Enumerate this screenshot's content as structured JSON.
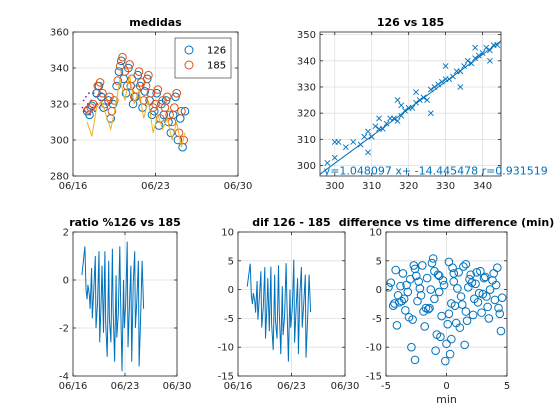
{
  "figure": {
    "background": "#ffffff",
    "axis_color": "#262626",
    "grid_color": "#dfdfdf"
  },
  "chart_data": [
    {
      "id": "medidas",
      "type": "scatter",
      "title": "medidas",
      "xlabel": "",
      "ylabel": "",
      "grid": true,
      "legend_position": "top-right",
      "xlim": [
        "06/16",
        "06/30"
      ],
      "ylim": [
        280,
        360
      ],
      "x_ticks": [
        {
          "value": 0,
          "label": "06/16"
        },
        {
          "value": 7,
          "label": "06/23"
        },
        {
          "value": 14,
          "label": "06/30"
        }
      ],
      "y_ticks": [
        280,
        300,
        320,
        340,
        360
      ],
      "series": [
        {
          "name": "126",
          "marker": "circle",
          "color": "#0072bd",
          "x": [
            1.2,
            1.4,
            1.6,
            2.0,
            2.2,
            2.4,
            2.6,
            3.0,
            3.2,
            3.4,
            3.7,
            3.9,
            4.1,
            4.3,
            4.5,
            4.7,
            4.9,
            5.1,
            5.3,
            5.5,
            5.7,
            5.9,
            6.1,
            6.3,
            6.5,
            6.7,
            6.9,
            7.1,
            7.3,
            7.5,
            7.7,
            7.9,
            8.1,
            8.3,
            8.5,
            8.7,
            8.9,
            9.1,
            9.3,
            9.5
          ],
          "y": [
            316,
            314,
            319,
            326,
            330,
            324,
            318,
            322,
            312,
            320,
            330,
            338,
            344,
            334,
            326,
            340,
            330,
            320,
            324,
            336,
            330,
            318,
            327,
            334,
            322,
            314,
            316,
            326,
            308,
            320,
            314,
            322,
            310,
            304,
            314,
            324,
            300,
            312,
            296,
            316
          ]
        },
        {
          "name": "185",
          "marker": "circle",
          "color": "#d95319",
          "x": [
            1.3,
            1.5,
            1.7,
            2.1,
            2.3,
            2.5,
            2.7,
            3.1,
            3.3,
            3.5,
            3.8,
            4.0,
            4.2,
            4.4,
            4.6,
            4.8,
            5.0,
            5.2,
            5.4,
            5.6,
            5.8,
            6.0,
            6.2,
            6.4,
            6.6,
            6.8,
            7.0,
            7.2,
            7.4,
            7.6,
            7.8,
            8.0,
            8.2,
            8.4,
            8.6,
            8.8,
            9.0,
            9.2,
            9.4
          ],
          "y": [
            317,
            318,
            320,
            330,
            332,
            326,
            320,
            324,
            316,
            322,
            333,
            341,
            346,
            338,
            330,
            342,
            334,
            324,
            328,
            338,
            332,
            322,
            330,
            336,
            326,
            318,
            320,
            328,
            312,
            322,
            318,
            324,
            314,
            310,
            318,
            326,
            304,
            316,
            300
          ]
        },
        {
          "name": "",
          "marker": "line",
          "color": "#edb120",
          "x": [
            1.2,
            1.6,
            2.0,
            2.4,
            2.8,
            3.2,
            3.6,
            4.0,
            4.4,
            4.8,
            5.2,
            5.6,
            6.0,
            6.4,
            6.8,
            7.2,
            7.6,
            8.0,
            8.4,
            8.8,
            9.2,
            9.5
          ],
          "y": [
            310,
            302,
            318,
            322,
            314,
            306,
            318,
            334,
            322,
            336,
            320,
            328,
            312,
            322,
            304,
            314,
            306,
            312,
            300,
            310,
            296,
            304
          ]
        },
        {
          "name": "",
          "marker": "dot",
          "color": "#7e2f8e",
          "x": [
            0.8,
            0.9,
            1.0,
            1.1,
            1.25,
            1.35,
            1.45,
            1.55,
            1.65,
            1.75,
            1.85,
            1.95,
            2.05,
            2.15,
            2.25,
            2.35,
            2.45
          ],
          "y": [
            318,
            322,
            316,
            324,
            320,
            326,
            314,
            322,
            318,
            326,
            316,
            324,
            320,
            328,
            318,
            322,
            326
          ]
        }
      ]
    },
    {
      "id": "scatter-126-185",
      "type": "scatter",
      "title": "126 vs 185",
      "xlabel": "",
      "ylabel": "",
      "grid": true,
      "xlim": [
        296,
        345
      ],
      "ylim": [
        296,
        351
      ],
      "x_ticks": [
        300,
        310,
        320,
        330,
        340
      ],
      "y_ticks": [
        300,
        310,
        320,
        330,
        340,
        350
      ],
      "series": [
        {
          "name": "",
          "marker": "x",
          "color": "#0072bd",
          "x": [
            298,
            300,
            301,
            303,
            305,
            307,
            308,
            309,
            310,
            311,
            312,
            313,
            314,
            315,
            316,
            317,
            318,
            319,
            320,
            321,
            322,
            323,
            324,
            325,
            326,
            327,
            328,
            329,
            330,
            331,
            332,
            333,
            334,
            335,
            336,
            337,
            338,
            339,
            340,
            341,
            342,
            343,
            344,
            317,
            318,
            309,
            312,
            322,
            326,
            330,
            334,
            338,
            342,
            300
          ],
          "y": [
            301,
            303,
            309,
            307,
            309,
            308,
            311,
            313,
            311,
            315,
            314,
            314,
            316,
            318,
            318,
            317,
            319,
            321,
            322,
            322,
            324,
            325,
            326,
            325,
            329,
            330,
            331,
            332,
            333,
            333,
            334,
            336,
            336,
            338,
            340,
            339,
            341,
            342,
            343,
            345,
            344,
            346,
            346,
            325,
            323,
            305,
            318,
            328,
            320,
            338,
            330,
            345,
            340,
            309
          ]
        }
      ],
      "fit_line": {
        "x": [
          296,
          345
        ],
        "y": [
          296.7,
          347.6
        ],
        "color": "#0072bd"
      },
      "annotation": {
        "text": "y=1.048097 x+ -14.445478 r=0.931519",
        "color": "#0072bd",
        "x": 297,
        "y": 296.5
      }
    },
    {
      "id": "ratio",
      "type": "line",
      "title": "ratio %126 vs 185",
      "xlabel": "",
      "ylabel": "",
      "grid": true,
      "xlim": [
        "06/16",
        "06/30"
      ],
      "ylim": [
        -4,
        2
      ],
      "x_ticks": [
        {
          "value": 0,
          "label": "06/16"
        },
        {
          "value": 7,
          "label": "06/23"
        },
        {
          "value": 14,
          "label": "06/30"
        }
      ],
      "y_ticks": [
        -4,
        -2,
        0,
        2
      ],
      "series": [
        {
          "name": "",
          "color": "#0072bd",
          "x": [
            1.2,
            1.4,
            1.6,
            1.75,
            1.9,
            2.0,
            2.2,
            2.3,
            2.5,
            2.6,
            2.8,
            3.0,
            3.1,
            3.3,
            3.5,
            3.6,
            3.8,
            3.9,
            4.1,
            4.3,
            4.4,
            4.6,
            4.8,
            4.9,
            5.1,
            5.3,
            5.4,
            5.6,
            5.8,
            5.9,
            6.1,
            6.3,
            6.4,
            6.6,
            6.8,
            6.9,
            7.1,
            7.3,
            7.4,
            7.6,
            7.8,
            7.9,
            8.1,
            8.3,
            8.4,
            8.6,
            8.8,
            8.9,
            9.1,
            9.3,
            9.5
          ],
          "y": [
            0.2,
            0.8,
            1.4,
            -0.4,
            -0.8,
            -0.2,
            -0.6,
            -1.2,
            0.5,
            -1.6,
            -0.4,
            1.0,
            -2.0,
            -1.0,
            1.2,
            -2.6,
            -0.8,
            0.6,
            -2.2,
            1.2,
            -1.8,
            -3.2,
            0.8,
            -1.6,
            -2.6,
            1.3,
            -1.2,
            -3.4,
            0.2,
            -2.4,
            -1.4,
            1.4,
            -0.6,
            -3.8,
            0.0,
            -2.0,
            -1.0,
            1.6,
            -2.8,
            -1.0,
            0.6,
            -3.4,
            -0.2,
            1.2,
            -2.0,
            -0.8,
            0.8,
            -3.6,
            -1.6,
            0.8,
            -1.2
          ]
        }
      ]
    },
    {
      "id": "dif",
      "type": "line",
      "title": "dif 126 - 185",
      "xlabel": "",
      "ylabel": "",
      "grid": true,
      "xlim": [
        "06/16",
        "06/30"
      ],
      "ylim": [
        -15,
        10
      ],
      "x_ticks": [
        {
          "value": 0,
          "label": "06/16"
        },
        {
          "value": 7,
          "label": "06/23"
        },
        {
          "value": 14,
          "label": "06/30"
        }
      ],
      "y_ticks": [
        -15,
        -10,
        -5,
        0,
        5,
        10
      ],
      "series": [
        {
          "name": "",
          "color": "#0072bd",
          "x": [
            1.2,
            1.4,
            1.6,
            1.75,
            1.9,
            2.0,
            2.2,
            2.3,
            2.5,
            2.6,
            2.8,
            3.0,
            3.1,
            3.3,
            3.5,
            3.6,
            3.8,
            3.9,
            4.1,
            4.3,
            4.4,
            4.6,
            4.8,
            4.9,
            5.1,
            5.3,
            5.4,
            5.6,
            5.8,
            5.9,
            6.1,
            6.3,
            6.4,
            6.6,
            6.8,
            6.9,
            7.1,
            7.3,
            7.4,
            7.6,
            7.8,
            7.9,
            8.1,
            8.3,
            8.4,
            8.6,
            8.8,
            8.9,
            9.1,
            9.3,
            9.5
          ],
          "y": [
            0.5,
            2.5,
            4.5,
            -1.2,
            -2.5,
            -0.6,
            -2.0,
            -4.0,
            1.5,
            -5.2,
            -1.3,
            3.2,
            -6.6,
            -3.3,
            3.9,
            -8.5,
            -2.6,
            2.0,
            -7.2,
            4.0,
            -5.9,
            -10.5,
            2.6,
            -5.2,
            -8.5,
            4.2,
            -3.9,
            -11.2,
            0.6,
            -7.9,
            -4.6,
            4.6,
            -2.0,
            -12.5,
            0.0,
            -6.6,
            -3.3,
            5.2,
            -9.2,
            -3.3,
            2.0,
            -11.2,
            -0.6,
            3.9,
            -6.6,
            -2.6,
            2.6,
            -11.8,
            -5.2,
            2.6,
            -3.9
          ]
        }
      ]
    },
    {
      "id": "difference-vs-time",
      "type": "scatter",
      "title": "difference vs time difference (min)",
      "xlabel": "min",
      "ylabel": "",
      "grid": true,
      "xlim": [
        -5,
        5
      ],
      "ylim": [
        -15,
        10
      ],
      "x_ticks": [
        -5,
        0,
        5
      ],
      "y_ticks": [
        -15,
        -10,
        -5,
        0,
        5,
        10
      ],
      "series": [
        {
          "name": "",
          "marker": "circle",
          "color": "#0072bd",
          "x": [
            -4.6,
            -4.4,
            -4.2,
            -4.0,
            -3.8,
            -3.6,
            -3.4,
            -3.2,
            -3.0,
            -2.8,
            -2.6,
            -2.4,
            -2.2,
            -2.0,
            -1.8,
            -1.6,
            -1.4,
            -1.2,
            -1.0,
            -0.8,
            -0.6,
            -0.4,
            -0.2,
            0.0,
            0.2,
            0.4,
            0.6,
            0.8,
            1.0,
            1.2,
            1.4,
            1.6,
            1.8,
            2.0,
            2.2,
            2.4,
            2.6,
            2.8,
            3.0,
            3.2,
            3.4,
            3.6,
            3.8,
            4.0,
            4.2,
            4.4,
            4.6,
            -4.8,
            -3.9,
            -3.1,
            -2.3,
            -1.5,
            -0.7,
            0.1,
            0.9,
            1.7,
            2.5,
            3.3,
            4.1,
            -2.9,
            -2.5,
            -1.1,
            -0.5,
            0.5,
            1.3,
            2.1,
            3.5,
            -3.5,
            -1.9,
            -0.9,
            0.3,
            1.1,
            2.7,
            3.9,
            -4.1,
            -2.7,
            -1.3,
            0.7,
            1.9,
            2.9,
            4.3,
            -0.3,
            0.4,
            -0.1,
            0.2,
            -1.0,
            1.5,
            -2.1,
            -3.3,
            3.1,
            -4.3,
            4.5,
            -1.7,
            1.6,
            -0.6,
            0.6,
            2.3,
            -2.6,
            -3.7
          ],
          "y": [
            1.2,
            -2.8,
            3.4,
            -1.0,
            0.6,
            2.8,
            -3.6,
            -0.4,
            1.8,
            -5.2,
            3.6,
            -2.0,
            0.2,
            4.2,
            -6.4,
            2.0,
            -3.2,
            4.6,
            -1.6,
            -7.8,
            2.4,
            -4.6,
            0.8,
            -9.4,
            4.8,
            -2.4,
            1.4,
            -5.8,
            3.0,
            -1.2,
            4.0,
            -3.8,
            0.4,
            2.6,
            -4.4,
            1.0,
            -2.2,
            3.2,
            -0.8,
            2.2,
            -3.0,
            0.0,
            1.6,
            -1.8,
            3.8,
            -4.2,
            -1.4,
            0.4,
            -2.2,
            -4.8,
            1.4,
            -3.4,
            2.6,
            -6.0,
            0.2,
            -5.4,
            3.0,
            -1.2,
            0.8,
            -10.0,
            2.4,
            5.4,
            -8.2,
            3.8,
            -2.6,
            1.2,
            -5.0,
            -1.6,
            -3.8,
            -10.6,
            -11.2,
            -6.6,
            -0.6,
            2.8,
            -6.2,
            4.2,
            0.0,
            -2.8,
            1.8,
            -4.0,
            -3.2,
            1.6,
            -8.6,
            -12.4,
            -4.2,
            3.2,
            -9.6,
            -1.0,
            0.8,
            2.0,
            -2.4,
            -7.2,
            -3.2,
            4.4,
            -0.4,
            2.8,
            -1.6,
            -12.2,
            -2.0
          ]
        }
      ]
    }
  ]
}
